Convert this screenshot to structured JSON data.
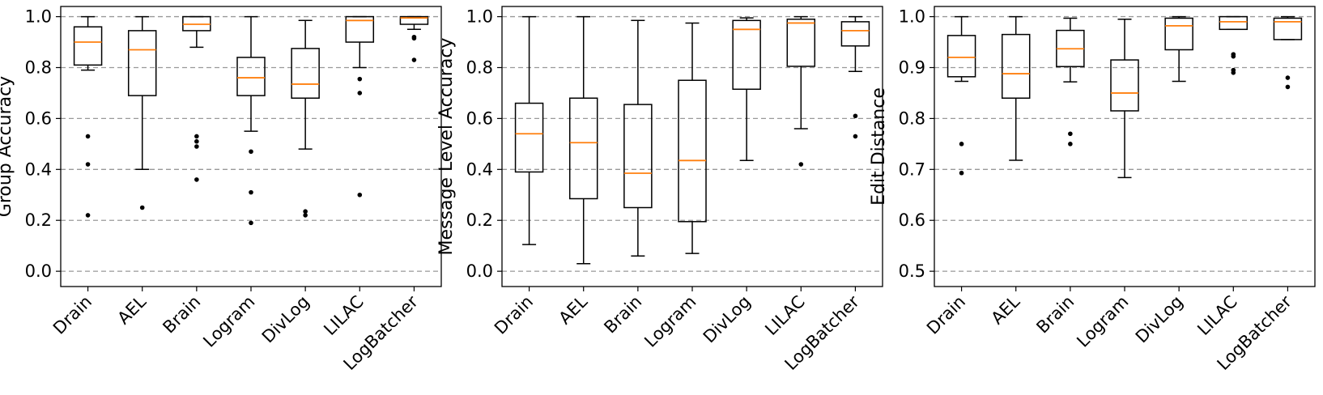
{
  "chart_data": [
    {
      "type": "box",
      "ylabel": "Group Accuracy",
      "ylim": [
        -0.06,
        1.04
      ],
      "yticks": [
        "0.0",
        "0.2",
        "0.4",
        "0.6",
        "0.8",
        "1.0"
      ],
      "grid": "horizontal dashed",
      "categories": [
        "Drain",
        "AEL",
        "Brain",
        "Logram",
        "DivLog",
        "LILAC",
        "LogBatcher"
      ],
      "boxes": [
        {
          "whislo": 0.79,
          "q1": 0.81,
          "med": 0.9,
          "q3": 0.96,
          "whishi": 1.0,
          "fliers": [
            0.53,
            0.42,
            0.22
          ]
        },
        {
          "whislo": 0.4,
          "q1": 0.69,
          "med": 0.87,
          "q3": 0.945,
          "whishi": 1.0,
          "fliers": [
            0.25
          ]
        },
        {
          "whislo": 0.88,
          "q1": 0.945,
          "med": 0.97,
          "q3": 1.0,
          "whishi": 1.0,
          "fliers": [
            0.53,
            0.51,
            0.49,
            0.36
          ]
        },
        {
          "whislo": 0.55,
          "q1": 0.69,
          "med": 0.76,
          "q3": 0.84,
          "whishi": 1.0,
          "fliers": [
            0.47,
            0.31,
            0.19
          ]
        },
        {
          "whislo": 0.48,
          "q1": 0.68,
          "med": 0.735,
          "q3": 0.875,
          "whishi": 0.985,
          "fliers": [
            0.235,
            0.22
          ]
        },
        {
          "whislo": 0.8,
          "q1": 0.9,
          "med": 0.985,
          "q3": 1.0,
          "whishi": 1.0,
          "fliers": [
            0.755,
            0.7,
            0.3
          ]
        },
        {
          "whislo": 0.95,
          "q1": 0.97,
          "med": 0.995,
          "q3": 1.0,
          "whishi": 1.0,
          "fliers": [
            0.92,
            0.915,
            0.83
          ]
        }
      ]
    },
    {
      "type": "box",
      "ylabel": "Message Level Accuracy",
      "ylim": [
        -0.06,
        1.04
      ],
      "yticks": [
        "0.0",
        "0.2",
        "0.4",
        "0.6",
        "0.8",
        "1.0"
      ],
      "grid": "horizontal dashed",
      "categories": [
        "Drain",
        "AEL",
        "Brain",
        "Logram",
        "DivLog",
        "LILAC",
        "LogBatcher"
      ],
      "boxes": [
        {
          "whislo": 0.105,
          "q1": 0.39,
          "med": 0.54,
          "q3": 0.66,
          "whishi": 1.0,
          "fliers": []
        },
        {
          "whislo": 0.03,
          "q1": 0.285,
          "med": 0.505,
          "q3": 0.68,
          "whishi": 1.0,
          "fliers": []
        },
        {
          "whislo": 0.06,
          "q1": 0.25,
          "med": 0.385,
          "q3": 0.655,
          "whishi": 0.985,
          "fliers": []
        },
        {
          "whislo": 0.07,
          "q1": 0.195,
          "med": 0.435,
          "q3": 0.75,
          "whishi": 0.975,
          "fliers": []
        },
        {
          "whislo": 0.435,
          "q1": 0.715,
          "med": 0.95,
          "q3": 0.985,
          "whishi": 0.995,
          "fliers": []
        },
        {
          "whislo": 0.56,
          "q1": 0.805,
          "med": 0.975,
          "q3": 0.99,
          "whishi": 1.0,
          "fliers": [
            0.42
          ]
        },
        {
          "whislo": 0.785,
          "q1": 0.885,
          "med": 0.945,
          "q3": 0.98,
          "whishi": 1.0,
          "fliers": [
            0.61,
            0.53
          ]
        }
      ]
    },
    {
      "type": "box",
      "ylabel": "Edit Distance",
      "ylim": [
        0.47,
        1.02
      ],
      "yticks": [
        "0.5",
        "0.6",
        "0.7",
        "0.8",
        "0.9",
        "1.0"
      ],
      "grid": "horizontal dashed",
      "categories": [
        "Drain",
        "AEL",
        "Brain",
        "Logram",
        "DivLog",
        "LILAC",
        "LogBatcher"
      ],
      "boxes": [
        {
          "whislo": 0.873,
          "q1": 0.882,
          "med": 0.92,
          "q3": 0.963,
          "whishi": 1.0,
          "fliers": [
            0.75,
            0.693
          ]
        },
        {
          "whislo": 0.718,
          "q1": 0.84,
          "med": 0.888,
          "q3": 0.965,
          "whishi": 1.0,
          "fliers": []
        },
        {
          "whislo": 0.872,
          "q1": 0.902,
          "med": 0.937,
          "q3": 0.973,
          "whishi": 0.997,
          "fliers": [
            0.77,
            0.75
          ]
        },
        {
          "whislo": 0.684,
          "q1": 0.815,
          "med": 0.85,
          "q3": 0.915,
          "whishi": 0.995,
          "fliers": []
        },
        {
          "whislo": 0.873,
          "q1": 0.935,
          "med": 0.982,
          "q3": 0.997,
          "whishi": 1.0,
          "fliers": []
        },
        {
          "whislo": 0.975,
          "q1": 0.975,
          "med": 0.99,
          "q3": 1.0,
          "whishi": 1.0,
          "fliers": [
            0.926,
            0.922,
            0.895,
            0.89
          ]
        },
        {
          "whislo": 0.955,
          "q1": 0.955,
          "med": 0.99,
          "q3": 0.997,
          "whishi": 1.0,
          "fliers": [
            0.88,
            0.862
          ]
        }
      ]
    }
  ],
  "colors": {
    "median": "#ff7f0e",
    "box": "#000000",
    "grid": "#999999",
    "background": "#ffffff"
  }
}
